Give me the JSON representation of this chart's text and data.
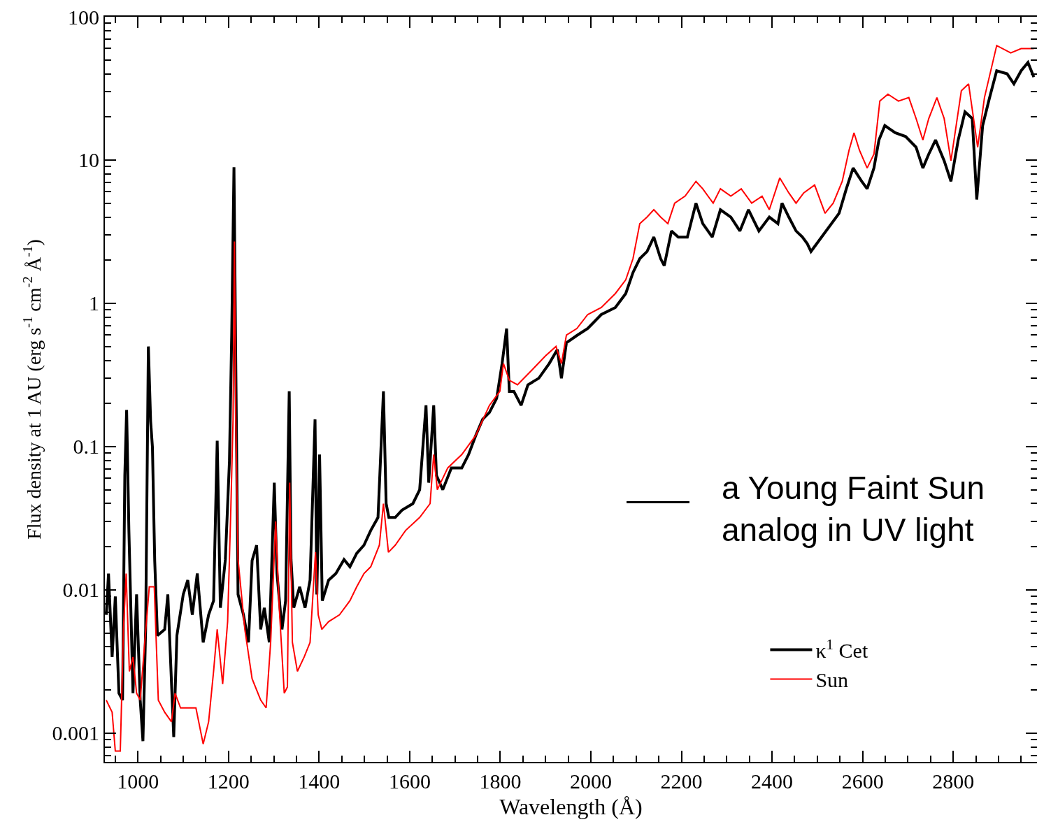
{
  "chart_data": {
    "type": "line",
    "xlabel": "Wavelength (Å)",
    "ylabel": "Flux density at 1 AU (erg s$^{-1}$ cm$^{-2}$ Å$^{-1}$)",
    "log": "y",
    "xlim": [
      927,
      2985
    ],
    "ylim": [
      0.00063,
      100
    ],
    "xticks": [
      1000,
      1200,
      1400,
      1600,
      1800,
      2000,
      2200,
      2400,
      2600,
      2800
    ],
    "yticks": [
      0.001,
      0.01,
      0.1,
      1,
      10,
      100
    ],
    "grid": false,
    "legend": "bottom right",
    "marker": "none",
    "line_style": "solid",
    "annotations": [
      "a Young Faint Sun\nanalog in UV light"
    ],
    "series": [
      {
        "name": "κ$^{1}$ Cet",
        "color": "#000000",
        "x": [
          930,
          935,
          943,
          950,
          958,
          966,
          971,
          975,
          980,
          989,
          997,
          1005,
          1011,
          1017,
          1023,
          1028,
          1032,
          1037,
          1043,
          1059,
          1066,
          1079,
          1086,
          1100,
          1110,
          1120,
          1131,
          1144,
          1156,
          1167,
          1175,
          1182,
          1193,
          1202,
          1207,
          1212,
          1216,
          1221,
          1233,
          1244,
          1252,
          1262,
          1271,
          1279,
          1290,
          1301,
          1307,
          1318,
          1326,
          1334,
          1338,
          1344,
          1357,
          1369,
          1380,
          1391,
          1395,
          1401,
          1407,
          1421,
          1437,
          1455,
          1468,
          1483,
          1499,
          1514,
          1530,
          1542,
          1548,
          1554,
          1568,
          1583,
          1607,
          1622,
          1636,
          1642,
          1653,
          1659,
          1673,
          1692,
          1715,
          1730,
          1746,
          1761,
          1776,
          1792,
          1804,
          1814,
          1820,
          1830,
          1846,
          1861,
          1885,
          1908,
          1926,
          1935,
          1946,
          1969,
          1993,
          2023,
          2054,
          2077,
          2093,
          2108,
          2124,
          2139,
          2154,
          2162,
          2178,
          2193,
          2213,
          2232,
          2247,
          2268,
          2286,
          2309,
          2329,
          2348,
          2371,
          2394,
          2413,
          2422,
          2437,
          2453,
          2467,
          2478,
          2486,
          2548,
          2564,
          2579,
          2598,
          2610,
          2625,
          2636,
          2649,
          2672,
          2695,
          2718,
          2733,
          2746,
          2761,
          2780,
          2795,
          2811,
          2826,
          2842,
          2852,
          2865,
          2880,
          2896,
          2919,
          2934,
          2950,
          2965,
          2978
        ],
        "values": [
          0.0067,
          0.013,
          0.0034,
          0.009,
          0.0019,
          0.0017,
          0.063,
          0.18,
          0.026,
          0.0019,
          0.0093,
          0.0017,
          0.00088,
          0.0053,
          0.5,
          0.15,
          0.099,
          0.016,
          0.0048,
          0.0053,
          0.0093,
          0.00094,
          0.0048,
          0.0093,
          0.0117,
          0.0067,
          0.013,
          0.0043,
          0.0067,
          0.0084,
          0.11,
          0.0075,
          0.0163,
          0.079,
          0.6,
          8.9,
          0.38,
          0.0093,
          0.0067,
          0.0043,
          0.016,
          0.0205,
          0.0053,
          0.0075,
          0.0043,
          0.056,
          0.013,
          0.0053,
          0.0084,
          0.243,
          0.0163,
          0.0075,
          0.0105,
          0.0075,
          0.0117,
          0.155,
          0.0093,
          0.088,
          0.0084,
          0.0117,
          0.013,
          0.0163,
          0.0145,
          0.018,
          0.0205,
          0.026,
          0.032,
          0.243,
          0.04,
          0.032,
          0.032,
          0.036,
          0.04,
          0.05,
          0.194,
          0.056,
          0.194,
          0.063,
          0.05,
          0.071,
          0.071,
          0.088,
          0.12,
          0.155,
          0.173,
          0.217,
          0.38,
          0.667,
          0.243,
          0.243,
          0.194,
          0.27,
          0.3,
          0.38,
          0.476,
          0.3,
          0.53,
          0.596,
          0.667,
          0.835,
          0.935,
          1.17,
          1.64,
          2.05,
          2.3,
          2.9,
          2.05,
          1.83,
          3.2,
          2.9,
          2.9,
          5.0,
          3.6,
          2.9,
          4.5,
          4.0,
          3.2,
          4.5,
          3.2,
          4.0,
          3.6,
          5.0,
          4.0,
          3.2,
          2.9,
          2.6,
          2.3,
          4.25,
          6.3,
          8.8,
          7.1,
          6.3,
          8.8,
          13.8,
          17.4,
          15.5,
          14.6,
          12.3,
          8.8,
          11.0,
          13.8,
          9.9,
          7.1,
          13.8,
          21.7,
          19.5,
          5.3,
          17.4,
          27,
          42,
          40,
          34,
          42,
          48,
          38
        ]
      },
      {
        "name": "Sun",
        "color": "#ff0000",
        "x": [
          930,
          943,
          950,
          961,
          968,
          974,
          981,
          989,
          997,
          1005,
          1015,
          1025,
          1036,
          1045,
          1059,
          1074,
          1082,
          1094,
          1113,
          1128,
          1144,
          1156,
          1167,
          1175,
          1187,
          1198,
          1205,
          1210,
          1213,
          1216,
          1221,
          1236,
          1252,
          1271,
          1283,
          1293,
          1304,
          1312,
          1323,
          1330,
          1335,
          1341,
          1352,
          1367,
          1380,
          1392,
          1398,
          1406,
          1421,
          1445,
          1468,
          1483,
          1499,
          1514,
          1533,
          1542,
          1553,
          1568,
          1591,
          1622,
          1645,
          1653,
          1661,
          1684,
          1715,
          1746,
          1776,
          1799,
          1807,
          1820,
          1838,
          1869,
          1900,
          1923,
          1935,
          1946,
          1969,
          1993,
          2023,
          2054,
          2077,
          2093,
          2108,
          2124,
          2139,
          2154,
          2170,
          2185,
          2208,
          2232,
          2247,
          2270,
          2286,
          2309,
          2332,
          2355,
          2378,
          2394,
          2417,
          2437,
          2453,
          2470,
          2494,
          2517,
          2535,
          2555,
          2570,
          2581,
          2593,
          2610,
          2625,
          2638,
          2656,
          2679,
          2702,
          2718,
          2733,
          2746,
          2764,
          2780,
          2795,
          2818,
          2834,
          2854,
          2869,
          2896,
          2927,
          2950,
          2978
        ],
        "values": [
          0.0017,
          0.0014,
          0.00075,
          0.00075,
          0.0053,
          0.013,
          0.0027,
          0.0034,
          0.0019,
          0.0017,
          0.0043,
          0.0105,
          0.0105,
          0.0017,
          0.0014,
          0.0012,
          0.0019,
          0.0015,
          0.0015,
          0.0015,
          0.00084,
          0.0012,
          0.0027,
          0.0053,
          0.0022,
          0.006,
          0.036,
          0.155,
          2.7,
          0.155,
          0.0163,
          0.0053,
          0.0024,
          0.0017,
          0.0015,
          0.0043,
          0.03,
          0.0075,
          0.0019,
          0.0021,
          0.056,
          0.0043,
          0.0027,
          0.0034,
          0.0043,
          0.0183,
          0.0067,
          0.0053,
          0.006,
          0.0067,
          0.0084,
          0.0105,
          0.013,
          0.0145,
          0.0205,
          0.04,
          0.0183,
          0.0205,
          0.026,
          0.032,
          0.04,
          0.088,
          0.05,
          0.071,
          0.088,
          0.12,
          0.194,
          0.243,
          0.38,
          0.29,
          0.27,
          0.34,
          0.43,
          0.5,
          0.38,
          0.6,
          0.667,
          0.835,
          0.935,
          1.17,
          1.46,
          2.05,
          3.6,
          4.0,
          4.5,
          4.0,
          3.6,
          5.0,
          5.6,
          7.1,
          6.3,
          5.0,
          6.3,
          5.6,
          6.3,
          5.0,
          5.6,
          4.5,
          7.5,
          5.9,
          5.0,
          5.9,
          6.7,
          4.25,
          5.0,
          7.1,
          11.7,
          15.5,
          11.7,
          8.8,
          11.0,
          25.8,
          28.8,
          25.8,
          27.3,
          19.5,
          13.8,
          19.5,
          27.3,
          19.5,
          9.9,
          30.5,
          34,
          12.3,
          27.3,
          63,
          56,
          60,
          60
        ]
      }
    ]
  }
}
